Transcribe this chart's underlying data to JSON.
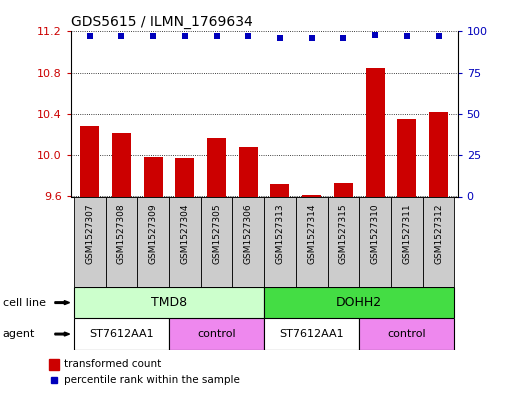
{
  "title": "GDS5615 / ILMN_1769634",
  "samples": [
    "GSM1527307",
    "GSM1527308",
    "GSM1527309",
    "GSM1527304",
    "GSM1527305",
    "GSM1527306",
    "GSM1527313",
    "GSM1527314",
    "GSM1527315",
    "GSM1527310",
    "GSM1527311",
    "GSM1527312"
  ],
  "bar_values": [
    10.28,
    10.22,
    9.98,
    9.97,
    10.17,
    10.08,
    9.72,
    9.61,
    9.73,
    10.85,
    10.35,
    10.42
  ],
  "dot_values": [
    97,
    97,
    97,
    97,
    97,
    97,
    96,
    96,
    96,
    98,
    97,
    97
  ],
  "ylim_left": [
    9.6,
    11.2
  ],
  "ylim_right": [
    0,
    100
  ],
  "yticks_left": [
    9.6,
    10.0,
    10.4,
    10.8,
    11.2
  ],
  "yticks_right": [
    0,
    25,
    50,
    75,
    100
  ],
  "bar_color": "#cc0000",
  "dot_color": "#0000bb",
  "cell_line_labels": [
    "TMD8",
    "DOHH2"
  ],
  "cell_line_ranges": [
    [
      0,
      5
    ],
    [
      6,
      11
    ]
  ],
  "cell_line_colors": [
    "#ccffcc",
    "#44dd44"
  ],
  "agent_labels": [
    "ST7612AA1",
    "control",
    "ST7612AA1",
    "control"
  ],
  "agent_ranges": [
    [
      0,
      2
    ],
    [
      3,
      5
    ],
    [
      6,
      8
    ],
    [
      9,
      11
    ]
  ],
  "agent_colors": [
    "#ffffff",
    "#ee88ee",
    "#ffffff",
    "#ee88ee"
  ],
  "cell_line_row_label": "cell line",
  "agent_row_label": "agent",
  "legend_bar_label": "transformed count",
  "legend_dot_label": "percentile rank within the sample",
  "bg_color": "#ffffff",
  "tick_color_left": "#cc0000",
  "tick_color_right": "#0000bb",
  "sample_box_color": "#cccccc"
}
